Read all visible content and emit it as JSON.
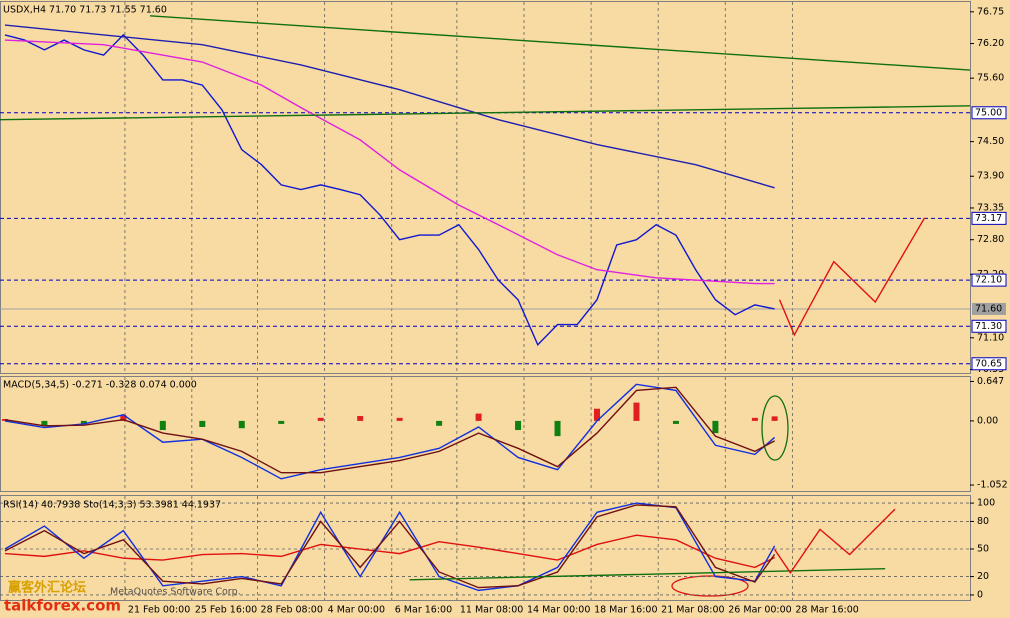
{
  "chart_data": [
    {
      "type": "line",
      "title": "USDX,H4  71.70 71.73 71.55 71.60",
      "xlim": [
        -0.25,
        48.9
      ],
      "ylim": [
        70.49,
        76.92
      ],
      "grid": false,
      "xticks": [
        {
          "value": 6.08,
          "label": "21 Feb 00:00"
        },
        {
          "value": 9.47,
          "label": "25 Feb 16:00"
        },
        {
          "value": 12.8,
          "label": "28 Feb 08:00"
        },
        {
          "value": 16.2,
          "label": "4 Mar 00:00"
        },
        {
          "value": 19.6,
          "label": "6 Mar 16:00"
        },
        {
          "value": 22.9,
          "label": "11 Mar 08:00"
        },
        {
          "value": 26.3,
          "label": "14 Mar 00:00"
        },
        {
          "value": 29.7,
          "label": "18 Mar 16:00"
        },
        {
          "value": 33.1,
          "label": "21 Mar 08:00"
        },
        {
          "value": 36.5,
          "label": "26 Mar 00:00"
        },
        {
          "value": 39.9,
          "label": "28 Mar 16:00"
        }
      ],
      "yticks": [
        {
          "value": 76.75,
          "label": "76.75"
        },
        {
          "value": 76.2,
          "label": "76.20"
        },
        {
          "value": 75.6,
          "label": "75.60"
        },
        {
          "value": 74.5,
          "label": "74.50"
        },
        {
          "value": 73.9,
          "label": "73.90"
        },
        {
          "value": 73.35,
          "label": "73.35"
        },
        {
          "value": 72.8,
          "label": "72.80"
        },
        {
          "value": 72.2,
          "label": "72.20"
        },
        {
          "value": 71.1,
          "label": "71.10"
        },
        {
          "value": 70.55,
          "label": "70.55"
        }
      ],
      "levels": [
        {
          "value": 75,
          "label": "75.00"
        },
        {
          "value": 73.17,
          "label": "73.17"
        },
        {
          "value": 72.1,
          "label": "72.10"
        },
        {
          "value": 71.3,
          "label": "71.30"
        },
        {
          "value": 70.65,
          "label": "70.65"
        }
      ],
      "level_color": "#0000c0",
      "last_price": {
        "value": 71.6,
        "label": "71.60"
      },
      "last_price_color": "#a0a0a0",
      "series": [
        {
          "color": "#1018d0",
          "x": [
            0,
            1,
            2,
            3,
            4,
            5,
            6,
            7,
            8,
            9,
            10,
            11,
            12,
            13,
            14,
            15,
            16,
            17,
            18,
            19,
            20,
            21,
            22,
            23,
            24,
            25,
            26,
            27,
            28,
            29,
            30,
            31,
            32,
            33,
            34,
            35,
            36,
            37,
            38,
            39
          ],
          "values": [
            76.35,
            76.26,
            76.09,
            76.26,
            76.09,
            76.0,
            76.35,
            76.0,
            75.57,
            75.57,
            75.48,
            75.05,
            74.36,
            74.1,
            73.75,
            73.67,
            73.75,
            73.67,
            73.58,
            73.23,
            72.8,
            72.88,
            72.88,
            73.06,
            72.63,
            72.1,
            71.76,
            70.98,
            71.33,
            71.33,
            71.76,
            72.71,
            72.8,
            73.06,
            72.88,
            72.28,
            71.76,
            71.5,
            71.67,
            71.6
          ]
        },
        {
          "color": "#e020e0",
          "x": [
            0,
            5,
            10,
            13,
            15,
            18,
            20,
            23,
            25,
            28,
            30,
            33,
            35,
            38,
            39
          ],
          "values": [
            76.26,
            76.18,
            75.88,
            75.48,
            75.09,
            74.53,
            74.01,
            73.4,
            73.06,
            72.54,
            72.28,
            72.14,
            72.1,
            72.04,
            72.04
          ]
        },
        {
          "color": "#2020b0",
          "x": [
            0,
            5,
            10,
            15,
            20,
            25,
            30,
            35,
            39
          ],
          "values": [
            76.52,
            76.35,
            76.18,
            75.83,
            75.4,
            74.88,
            74.45,
            74.1,
            73.7
          ]
        },
        {
          "color": "#107010",
          "x": [
            7.35,
            48.9
          ],
          "values": [
            76.68,
            75.74
          ]
        },
        {
          "color": "#107010",
          "x": [
            -0.25,
            48.9
          ],
          "values": [
            74.88,
            75.12
          ]
        },
        {
          "color": "#e01010",
          "x": [
            39.25,
            40,
            42,
            44.1,
            46.6
          ],
          "values": [
            71.76,
            71.15,
            72.42,
            71.72,
            73.18
          ]
        }
      ]
    },
    {
      "type": "bar",
      "title": "MACD(5,34,5) -0.271 -0.328 0.074 0.000",
      "ylim": [
        -1.15,
        0.72
      ],
      "yticks": [
        0.647,
        {
          "value": 0,
          "label": "0.00"
        },
        -1.052
      ],
      "histogram": {
        "up_color": "#e02020",
        "down_color": "#108010",
        "x": [
          0,
          2,
          4,
          6,
          8,
          10,
          12,
          14,
          16,
          18,
          20,
          22,
          24,
          26,
          28,
          30,
          32,
          34,
          36,
          38,
          39
        ],
        "values": [
          0.03,
          -0.08,
          -0.05,
          0.1,
          -0.15,
          -0.1,
          -0.12,
          -0.05,
          0.05,
          0.08,
          0.05,
          -0.08,
          0.12,
          -0.15,
          -0.25,
          0.2,
          0.3,
          -0.05,
          -0.2,
          0.05,
          0.074
        ]
      },
      "series": [
        {
          "color": "#1030e0",
          "x": [
            0,
            2,
            4,
            6,
            8,
            10,
            12,
            14,
            16,
            18,
            20,
            22,
            24,
            26,
            28,
            30,
            32,
            34,
            36,
            38,
            39
          ],
          "values": [
            0,
            -0.11,
            -0.05,
            0.1,
            -0.35,
            -0.3,
            -0.6,
            -0.95,
            -0.8,
            -0.7,
            -0.6,
            -0.45,
            -0.1,
            -0.6,
            -0.8,
            0,
            0.6,
            0.5,
            -0.4,
            -0.55,
            -0.271
          ]
        },
        {
          "color": "#701010",
          "x": [
            0,
            2,
            4,
            6,
            8,
            10,
            12,
            14,
            16,
            18,
            20,
            22,
            24,
            26,
            28,
            30,
            32,
            34,
            36,
            38,
            39
          ],
          "values": [
            0.02,
            -0.08,
            -0.07,
            0.02,
            -0.2,
            -0.3,
            -0.5,
            -0.85,
            -0.85,
            -0.75,
            -0.65,
            -0.5,
            -0.2,
            -0.45,
            -0.75,
            -0.2,
            0.5,
            0.55,
            -0.25,
            -0.5,
            -0.328
          ]
        }
      ]
    },
    {
      "type": "line",
      "title": "RSI(14) 40.7938 Sto(14,3,3) 53.3981 44.1937",
      "ylim": [
        -5.5,
        107.7
      ],
      "yticks": [
        100,
        80,
        50,
        20,
        0
      ],
      "grid": true,
      "series": [
        {
          "color": "#e01010",
          "x": [
            0,
            2,
            4,
            6,
            8,
            10,
            12,
            14,
            16,
            18,
            20,
            22,
            24,
            26,
            28,
            30,
            32,
            34,
            36,
            38,
            39
          ],
          "values": [
            45,
            42,
            48,
            40,
            38,
            44,
            45,
            42,
            55,
            50,
            45,
            58,
            52,
            45,
            38,
            55,
            65,
            60,
            40,
            30,
            40.79
          ]
        },
        {
          "color": "#1030e0",
          "x": [
            0,
            2,
            4,
            6,
            8,
            10,
            12,
            14,
            16,
            18,
            20,
            22,
            24,
            26,
            28,
            30,
            32,
            34,
            36,
            38,
            39
          ],
          "values": [
            50,
            75,
            40,
            70,
            10,
            15,
            20,
            10,
            90,
            20,
            90,
            20,
            5,
            10,
            30,
            90,
            100,
            95,
            20,
            15,
            53.4
          ]
        },
        {
          "color": "#701010",
          "x": [
            0,
            2,
            4,
            6,
            8,
            10,
            12,
            14,
            16,
            18,
            20,
            22,
            24,
            26,
            28,
            30,
            32,
            34,
            36,
            38,
            39
          ],
          "values": [
            48,
            70,
            45,
            60,
            15,
            12,
            18,
            12,
            80,
            30,
            80,
            25,
            8,
            10,
            25,
            85,
            98,
            96,
            30,
            14,
            44.19
          ]
        },
        {
          "color": "#107010",
          "x": [
            20.5,
            44.6
          ],
          "values": [
            16.5,
            28.6
          ]
        },
        {
          "color": "#e01010",
          "x": [
            39,
            39.8,
            41.3,
            42.8,
            45.1
          ],
          "values": [
            49.5,
            24.2,
            71.4,
            44,
            93.4
          ]
        }
      ]
    }
  ],
  "watermark": {
    "forum": "赢客外汇论坛",
    "site": "talkforex.com",
    "copyright": "MetaQuotes Software Corp."
  }
}
